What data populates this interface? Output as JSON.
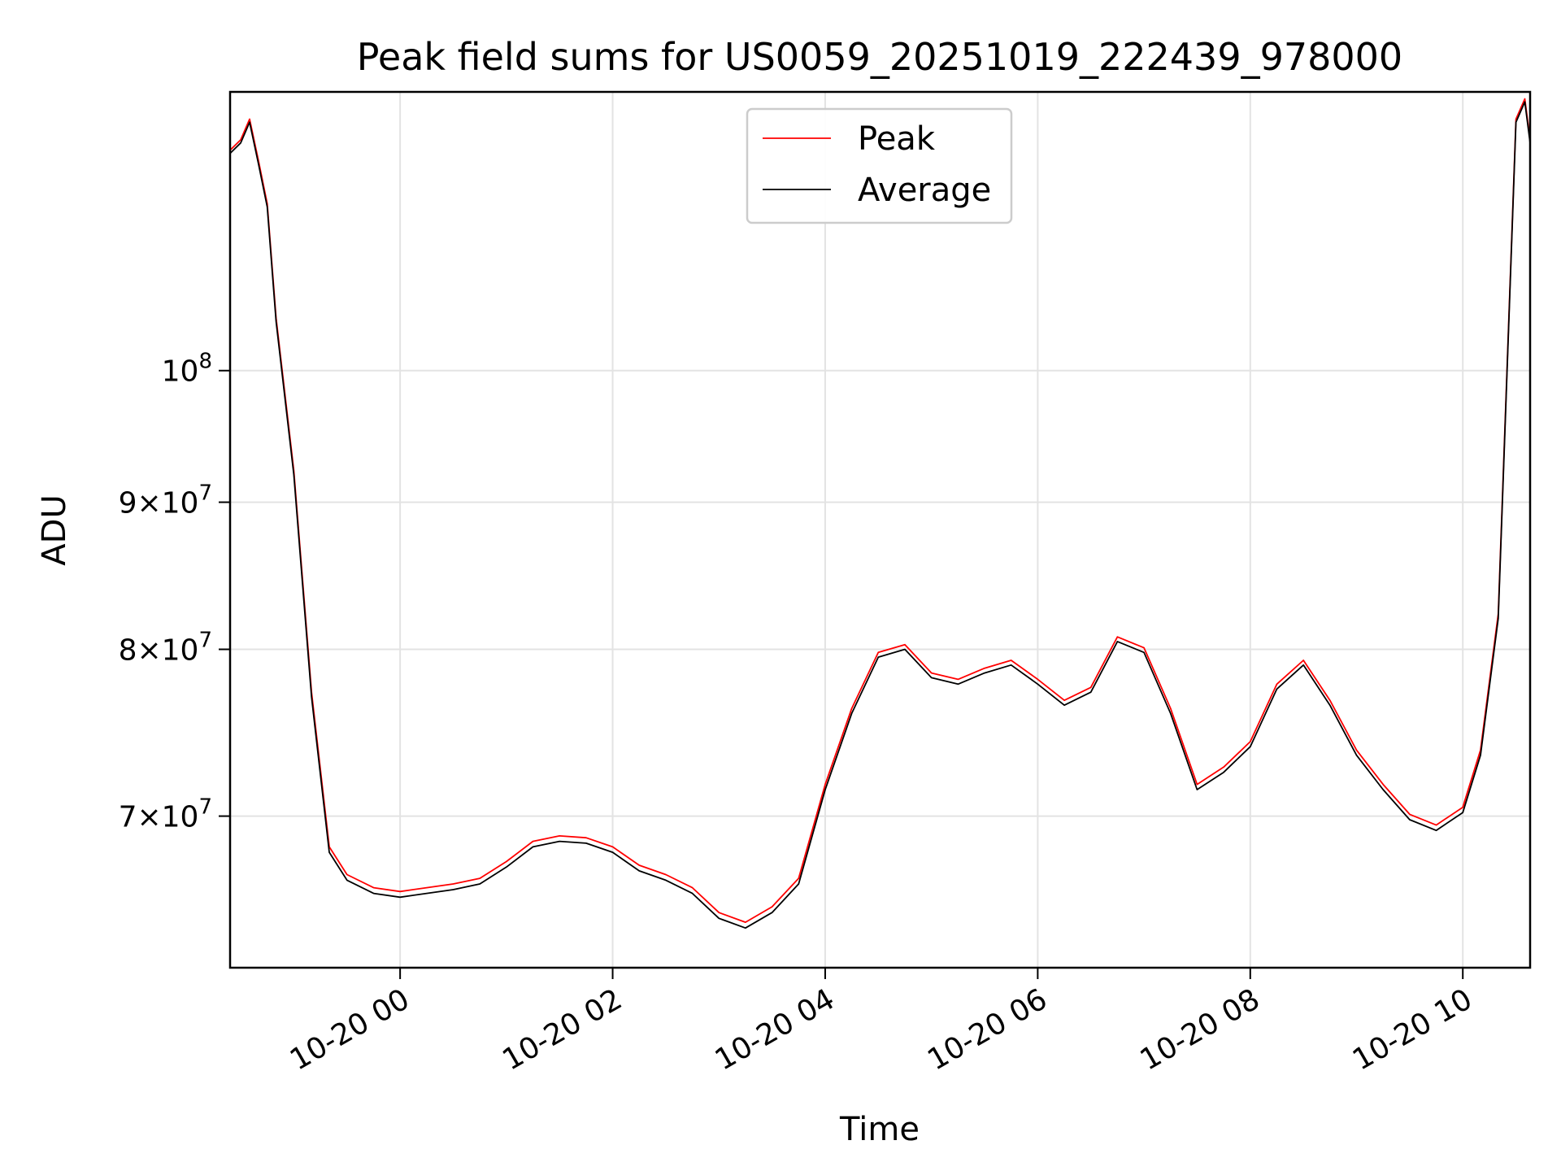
{
  "chart_data": {
    "type": "line",
    "title": "Peak field sums for US0059_20251019_222439_978000",
    "xlabel": "Time",
    "ylabel": "ADU",
    "yscale": "log",
    "ylim": [
      62000000,
      125000000
    ],
    "xlim": [
      "2025-10-19 22:24",
      "2025-10-20 10:38"
    ],
    "grid": true,
    "legend": {
      "placement": "upper center",
      "entries": [
        "Peak",
        "Average"
      ]
    },
    "x_ticks": [
      {
        "t": "2025-10-20 00:00",
        "label": "10-20 00"
      },
      {
        "t": "2025-10-20 02:00",
        "label": "10-20 02"
      },
      {
        "t": "2025-10-20 04:00",
        "label": "10-20 04"
      },
      {
        "t": "2025-10-20 06:00",
        "label": "10-20 06"
      },
      {
        "t": "2025-10-20 08:00",
        "label": "10-20 08"
      },
      {
        "t": "2025-10-20 10:00",
        "label": "10-20 10"
      }
    ],
    "y_ticks": [
      {
        "value": 100000000,
        "base": "10",
        "exp": "8",
        "mantissa": ""
      },
      {
        "value": 90000000,
        "base": "10",
        "exp": "7",
        "mantissa": "9"
      },
      {
        "value": 80000000,
        "base": "10",
        "exp": "7",
        "mantissa": "8"
      },
      {
        "value": 70000000,
        "base": "10",
        "exp": "7",
        "mantissa": "7"
      }
    ],
    "series": [
      {
        "name": "Average",
        "color": "#000000",
        "points": [
          [
            "2025-10-19 22:24",
            119000000
          ],
          [
            "2025-10-19 22:30",
            120000000
          ],
          [
            "2025-10-19 22:35",
            122000000
          ],
          [
            "2025-10-19 22:40",
            118000000
          ],
          [
            "2025-10-19 22:45",
            114000000
          ],
          [
            "2025-10-19 22:50",
            104000000
          ],
          [
            "2025-10-19 23:00",
            92000000
          ],
          [
            "2025-10-19 23:10",
            77000000
          ],
          [
            "2025-10-19 23:20",
            68000000
          ],
          [
            "2025-10-19 23:30",
            66500000
          ],
          [
            "2025-10-19 23:45",
            65800000
          ],
          [
            "2025-10-20 00:00",
            65600000
          ],
          [
            "2025-10-20 00:15",
            65800000
          ],
          [
            "2025-10-20 00:30",
            66000000
          ],
          [
            "2025-10-20 00:45",
            66300000
          ],
          [
            "2025-10-20 01:00",
            67200000
          ],
          [
            "2025-10-20 01:15",
            68300000
          ],
          [
            "2025-10-20 01:30",
            68600000
          ],
          [
            "2025-10-20 01:45",
            68500000
          ],
          [
            "2025-10-20 02:00",
            68000000
          ],
          [
            "2025-10-20 02:15",
            67000000
          ],
          [
            "2025-10-20 02:30",
            66500000
          ],
          [
            "2025-10-20 02:45",
            65800000
          ],
          [
            "2025-10-20 03:00",
            64500000
          ],
          [
            "2025-10-20 03:15",
            64000000
          ],
          [
            "2025-10-20 03:30",
            64800000
          ],
          [
            "2025-10-20 03:45",
            66300000
          ],
          [
            "2025-10-20 04:00",
            71500000
          ],
          [
            "2025-10-20 04:15",
            76000000
          ],
          [
            "2025-10-20 04:30",
            79500000
          ],
          [
            "2025-10-20 04:45",
            80000000
          ],
          [
            "2025-10-20 05:00",
            78200000
          ],
          [
            "2025-10-20 05:15",
            77800000
          ],
          [
            "2025-10-20 05:30",
            78500000
          ],
          [
            "2025-10-20 05:45",
            79000000
          ],
          [
            "2025-10-20 06:00",
            77800000
          ],
          [
            "2025-10-20 06:15",
            76500000
          ],
          [
            "2025-10-20 06:30",
            77300000
          ],
          [
            "2025-10-20 06:45",
            80500000
          ],
          [
            "2025-10-20 07:00",
            79800000
          ],
          [
            "2025-10-20 07:15",
            76000000
          ],
          [
            "2025-10-20 07:30",
            71500000
          ],
          [
            "2025-10-20 07:45",
            72500000
          ],
          [
            "2025-10-20 08:00",
            74000000
          ],
          [
            "2025-10-20 08:15",
            77500000
          ],
          [
            "2025-10-20 08:30",
            79000000
          ],
          [
            "2025-10-20 08:45",
            76500000
          ],
          [
            "2025-10-20 09:00",
            73500000
          ],
          [
            "2025-10-20 09:15",
            71500000
          ],
          [
            "2025-10-20 09:30",
            69800000
          ],
          [
            "2025-10-20 09:45",
            69200000
          ],
          [
            "2025-10-20 10:00",
            70200000
          ],
          [
            "2025-10-20 10:10",
            73500000
          ],
          [
            "2025-10-20 10:20",
            82000000
          ],
          [
            "2025-10-20 10:25",
            100000000
          ],
          [
            "2025-10-20 10:30",
            122000000
          ],
          [
            "2025-10-20 10:35",
            124000000
          ],
          [
            "2025-10-20 10:38",
            120000000
          ]
        ]
      },
      {
        "name": "Peak",
        "color": "#ff0000",
        "points": [
          [
            "2025-10-19 22:24",
            119300000
          ],
          [
            "2025-10-19 22:30",
            120300000
          ],
          [
            "2025-10-19 22:35",
            122300000
          ],
          [
            "2025-10-19 22:40",
            118300000
          ],
          [
            "2025-10-19 22:45",
            114300000
          ],
          [
            "2025-10-19 22:50",
            104300000
          ],
          [
            "2025-10-19 23:00",
            92300000
          ],
          [
            "2025-10-19 23:10",
            77300000
          ],
          [
            "2025-10-19 23:20",
            68300000
          ],
          [
            "2025-10-19 23:30",
            66800000
          ],
          [
            "2025-10-19 23:45",
            66100000
          ],
          [
            "2025-10-20 00:00",
            65900000
          ],
          [
            "2025-10-20 00:15",
            66100000
          ],
          [
            "2025-10-20 00:30",
            66300000
          ],
          [
            "2025-10-20 00:45",
            66600000
          ],
          [
            "2025-10-20 01:00",
            67500000
          ],
          [
            "2025-10-20 01:15",
            68600000
          ],
          [
            "2025-10-20 01:30",
            68900000
          ],
          [
            "2025-10-20 01:45",
            68800000
          ],
          [
            "2025-10-20 02:00",
            68300000
          ],
          [
            "2025-10-20 02:15",
            67300000
          ],
          [
            "2025-10-20 02:30",
            66800000
          ],
          [
            "2025-10-20 02:45",
            66100000
          ],
          [
            "2025-10-20 03:00",
            64800000
          ],
          [
            "2025-10-20 03:15",
            64300000
          ],
          [
            "2025-10-20 03:30",
            65100000
          ],
          [
            "2025-10-20 03:45",
            66600000
          ],
          [
            "2025-10-20 04:00",
            71800000
          ],
          [
            "2025-10-20 04:15",
            76300000
          ],
          [
            "2025-10-20 04:30",
            79800000
          ],
          [
            "2025-10-20 04:45",
            80300000
          ],
          [
            "2025-10-20 05:00",
            78500000
          ],
          [
            "2025-10-20 05:15",
            78100000
          ],
          [
            "2025-10-20 05:30",
            78800000
          ],
          [
            "2025-10-20 05:45",
            79300000
          ],
          [
            "2025-10-20 06:00",
            78100000
          ],
          [
            "2025-10-20 06:15",
            76800000
          ],
          [
            "2025-10-20 06:30",
            77600000
          ],
          [
            "2025-10-20 06:45",
            80800000
          ],
          [
            "2025-10-20 07:00",
            80100000
          ],
          [
            "2025-10-20 07:15",
            76300000
          ],
          [
            "2025-10-20 07:30",
            71800000
          ],
          [
            "2025-10-20 07:45",
            72800000
          ],
          [
            "2025-10-20 08:00",
            74300000
          ],
          [
            "2025-10-20 08:15",
            77800000
          ],
          [
            "2025-10-20 08:30",
            79300000
          ],
          [
            "2025-10-20 08:45",
            76800000
          ],
          [
            "2025-10-20 09:00",
            73800000
          ],
          [
            "2025-10-20 09:15",
            71800000
          ],
          [
            "2025-10-20 09:30",
            70100000
          ],
          [
            "2025-10-20 09:45",
            69500000
          ],
          [
            "2025-10-20 10:00",
            70500000
          ],
          [
            "2025-10-20 10:10",
            73800000
          ],
          [
            "2025-10-20 10:20",
            82300000
          ],
          [
            "2025-10-20 10:25",
            100300000
          ],
          [
            "2025-10-20 10:30",
            122300000
          ],
          [
            "2025-10-20 10:35",
            124300000
          ],
          [
            "2025-10-20 10:38",
            120300000
          ]
        ]
      }
    ]
  }
}
